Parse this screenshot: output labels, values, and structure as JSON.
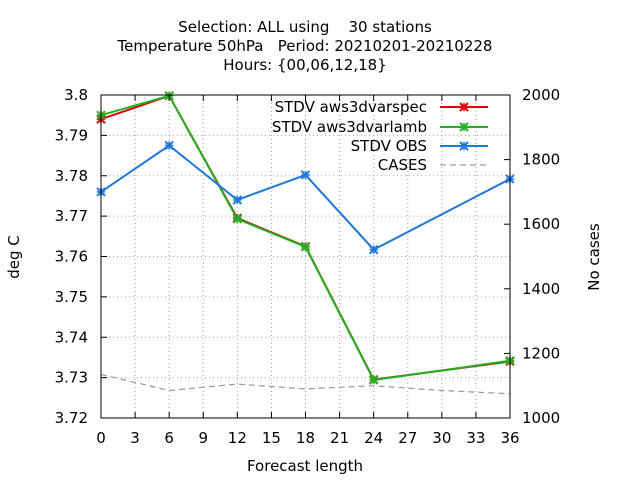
{
  "chart_data": {
    "type": "line",
    "title_lines": [
      "Selection: ALL using    30 stations",
      "Temperature 50hPa   Period: 20210201-20210228",
      "Hours: {00,06,12,18}"
    ],
    "xlabel": "Forecast length",
    "ylabel": "deg C",
    "y2label": "No cases",
    "xlim": [
      0,
      36
    ],
    "ylim": [
      3.72,
      3.8
    ],
    "y2lim": [
      1000,
      2000
    ],
    "x_ticks": [
      0,
      3,
      6,
      9,
      12,
      15,
      18,
      21,
      24,
      27,
      30,
      33,
      36
    ],
    "y_ticks": [
      "3.72",
      "3.73",
      "3.74",
      "3.75",
      "3.76",
      "3.77",
      "3.78",
      "3.79",
      "3.8"
    ],
    "y2_ticks": [
      "1000",
      "1200",
      "1400",
      "1600",
      "1800",
      "2000"
    ],
    "grid": true,
    "legend_position": "top-right",
    "series": [
      {
        "name": "STDV aws3dvarspec",
        "color": "#e00000",
        "axis": "left",
        "marker": "x",
        "x": [
          0,
          6,
          12,
          18,
          24,
          36
        ],
        "values": [
          3.794,
          3.7998,
          3.7695,
          3.7625,
          3.7295,
          3.734
        ]
      },
      {
        "name": "STDV aws3dvarlamb",
        "color": "#22b022",
        "axis": "left",
        "marker": "x",
        "x": [
          0,
          6,
          12,
          18,
          24,
          36
        ],
        "values": [
          3.795,
          3.7998,
          3.7693,
          3.7624,
          3.7294,
          3.7342
        ]
      },
      {
        "name": "STDV OBS",
        "color": "#1e78dc",
        "axis": "left",
        "marker": "x",
        "x": [
          0,
          6,
          12,
          18,
          24,
          36
        ],
        "values": [
          3.776,
          3.7875,
          3.774,
          3.7802,
          3.7617,
          3.7792
        ]
      },
      {
        "name": "CASES",
        "color": "#999999",
        "axis": "right",
        "marker": "none",
        "dashed": true,
        "x": [
          0,
          6,
          12,
          18,
          24,
          30,
          36
        ],
        "values": [
          1135,
          1085,
          1105,
          1090,
          1100,
          1085,
          1075
        ]
      }
    ]
  }
}
